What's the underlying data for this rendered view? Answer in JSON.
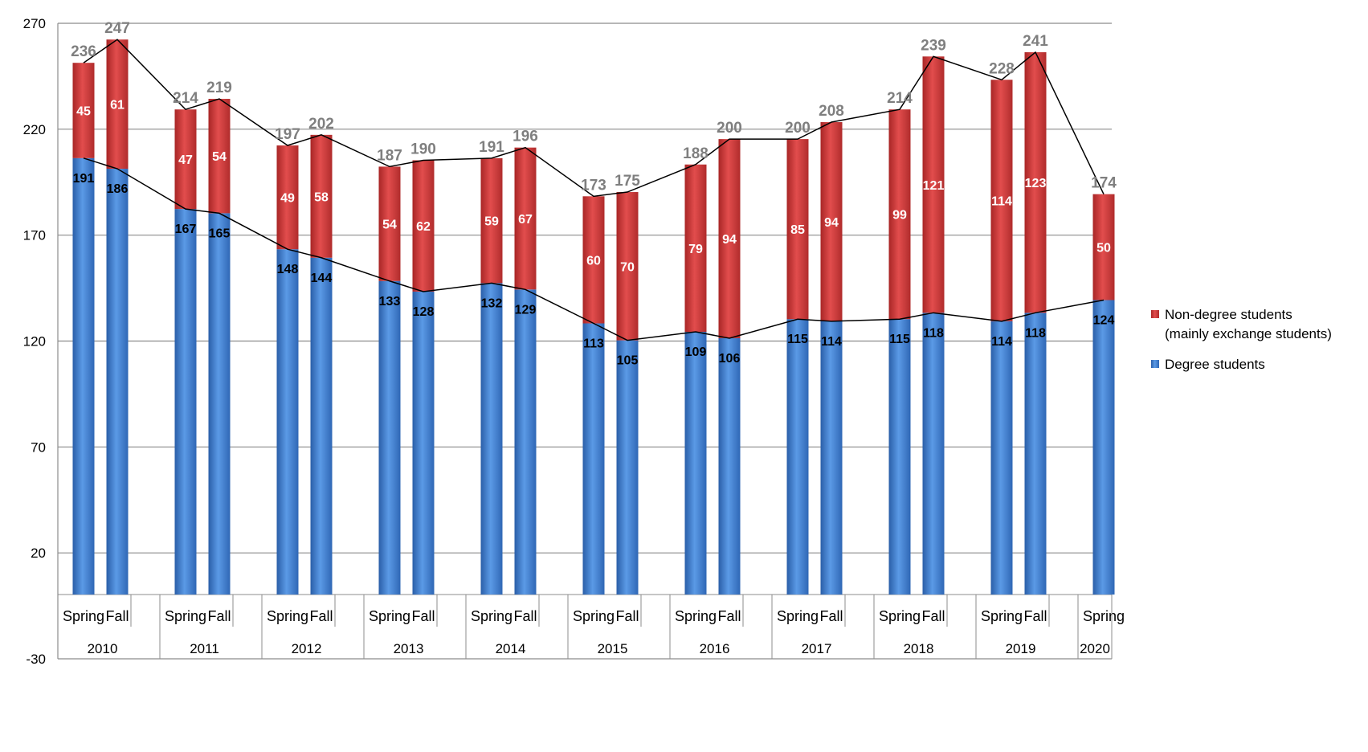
{
  "chart_data": {
    "type": "bar",
    "stacked": true,
    "categories": [
      "Spring",
      "Fall",
      "Spring",
      "Fall",
      "Spring",
      "Fall",
      "Spring",
      "Fall",
      "Spring",
      "Fall",
      "Spring",
      "Fall",
      "Spring",
      "Fall",
      "Spring",
      "Fall",
      "Spring",
      "Fall",
      "Spring",
      "Fall",
      "Spring"
    ],
    "years": [
      "2010",
      "2011",
      "2012",
      "2013",
      "2014",
      "2015",
      "2016",
      "2017",
      "2018",
      "2019",
      "2020"
    ],
    "series": [
      {
        "name": "Degree students",
        "color": "#4a86d4",
        "values": [
          191,
          186,
          167,
          165,
          148,
          144,
          133,
          128,
          132,
          129,
          113,
          105,
          109,
          106,
          115,
          114,
          115,
          118,
          114,
          118,
          124
        ]
      },
      {
        "name": "Non-degree students (mainly exchange students)",
        "color": "#d43a3a",
        "values": [
          45,
          61,
          47,
          54,
          49,
          58,
          54,
          62,
          59,
          67,
          60,
          70,
          79,
          94,
          85,
          94,
          99,
          121,
          114,
          123,
          50
        ]
      }
    ],
    "totals": [
      236,
      247,
      214,
      219,
      197,
      202,
      187,
      190,
      191,
      196,
      173,
      175,
      188,
      200,
      200,
      208,
      214,
      239,
      228,
      241,
      174
    ],
    "ylim": [
      -30,
      270
    ],
    "yticks": [
      -30,
      20,
      70,
      120,
      170,
      220,
      270
    ],
    "grid": true,
    "legend_position": "right"
  },
  "legend": {
    "nondeg_line1": "Non-degree students",
    "nondeg_line2": "(mainly exchange students)",
    "degree": "Degree students"
  }
}
